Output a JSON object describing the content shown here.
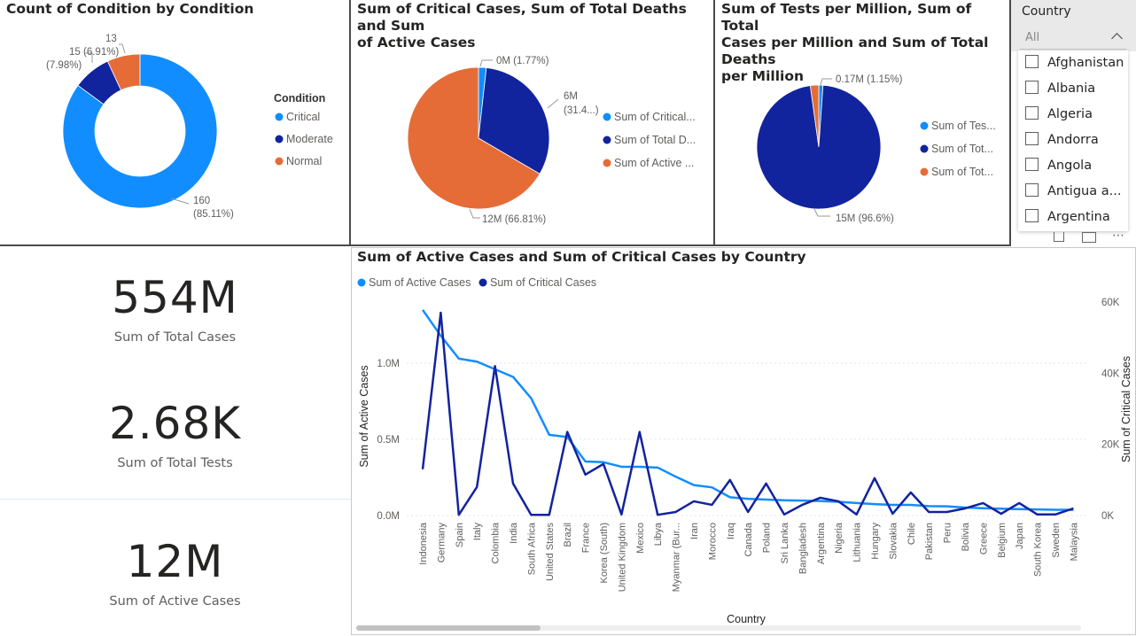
{
  "colors": {
    "light_blue": "#118DFF",
    "dark_blue": "#12239E",
    "orange": "#E66C37",
    "grid": "#e6e6e6",
    "text": "#252423",
    "muted": "#605e5c"
  },
  "donut": {
    "title": "Count of Condition by Condition",
    "legend_title": "Condition",
    "legend": [
      "Critical",
      "Moderate",
      "Normal"
    ],
    "labels": [
      {
        "l1": "160",
        "l2": "(85.11%)"
      },
      {
        "l1": "15",
        "l2": "(7.98%)"
      },
      {
        "l1": "13",
        "l2": "(6.91%)"
      }
    ]
  },
  "pie1": {
    "title_line1": "Sum of Critical Cases, Sum of Total Deaths and Sum",
    "title_line2": "of Active Cases",
    "legend": [
      "Sum of Critical...",
      "Sum of Total D...",
      "Sum of Active ..."
    ],
    "labels": [
      {
        "l1": "0M (1.77%)"
      },
      {
        "l1": "6M",
        "l2": "(31.4...)"
      },
      {
        "l1": "12M (66.81%)"
      }
    ]
  },
  "pie2": {
    "title_line1": "Sum of Tests per Million, Sum of Total",
    "title_line2": "Cases per Million and Sum of Total Deaths",
    "title_line3": "per Million",
    "legend": [
      "Sum of Tes...",
      "Sum of Tot...",
      "Sum of Tot..."
    ],
    "labels": [
      {
        "l1": "0.17M (1.15%)"
      },
      {
        "l1": "15M (96.6%)"
      }
    ]
  },
  "slicer": {
    "title": "Country",
    "selected": "All",
    "items": [
      "Afghanistan",
      "Albania",
      "Algeria",
      "Andorra",
      "Angola",
      "Antigua a...",
      "Argentina"
    ]
  },
  "kpis": [
    {
      "value": "554M",
      "label": "Sum of Total Cases"
    },
    {
      "value": "2.68K",
      "label": "Sum of Total Tests"
    },
    {
      "value": "12M",
      "label": "Sum of Active Cases"
    }
  ],
  "line": {
    "title": "Sum of Active Cases and Sum of Critical Cases by Country",
    "xlabel": "Country",
    "ylabel_left": "Sum of Active Cases",
    "ylabel_right": "Sum of Critical Cases",
    "left_ticks": [
      "0.0M",
      "0.5M",
      "1.0M"
    ],
    "right_ticks": [
      "0K",
      "20K",
      "40K",
      "60K"
    ]
  },
  "chart_data": [
    {
      "type": "pie",
      "title": "Count of Condition by Condition",
      "donut": true,
      "legend_title": "Condition",
      "categories": [
        "Critical",
        "Moderate",
        "Normal"
      ],
      "values": [
        160,
        15,
        13
      ],
      "percents": [
        85.11,
        7.98,
        6.91
      ],
      "legend_position": "right"
    },
    {
      "type": "pie",
      "title": "Sum of Critical Cases, Sum of Total Deaths and Sum of Active Cases",
      "categories": [
        "Sum of Critical...",
        "Sum of Total D...",
        "Sum of Active ..."
      ],
      "values": [
        0.32,
        5.7,
        12
      ],
      "percents": [
        1.77,
        31.42,
        66.81
      ],
      "legend_position": "right"
    },
    {
      "type": "pie",
      "title": "Sum of Tests per Million, Sum of Total Cases per Million and Sum of Total Deaths per Million",
      "categories": [
        "Sum of Tes...",
        "Sum of Tot...",
        "Sum of Tot..."
      ],
      "values": [
        0.17,
        15,
        0.34
      ],
      "percents": [
        1.15,
        96.6,
        2.25
      ],
      "legend_position": "right"
    },
    {
      "type": "line",
      "title": "Sum of Active Cases and Sum of Critical Cases by Country",
      "xlabel": "Country",
      "ylabel": "Sum of Active Cases",
      "y2label": "Sum of Critical Cases",
      "ylim": [
        0,
        1400000
      ],
      "y2lim": [
        0,
        60000
      ],
      "legend_position": "top-left",
      "categories": [
        "Indonesia",
        "Germany",
        "Spain",
        "Italy",
        "Colombia",
        "India",
        "South Africa",
        "United States",
        "Brazil",
        "France",
        "Korea (South)",
        "United Kingdom",
        "Mexico",
        "Libya",
        "Myanmar (Bur...",
        "Iran",
        "Morocco",
        "Iraq",
        "Canada",
        "Poland",
        "Sri Lanka",
        "Bangladesh",
        "Argentina",
        "Nigeria",
        "Lithuania",
        "Hungary",
        "Slovakia",
        "Chile",
        "Pakistan",
        "Peru",
        "Bolivia",
        "Greece",
        "Belgium",
        "Japan",
        "South Korea",
        "Sweden",
        "Malaysia"
      ],
      "series": [
        {
          "name": "Sum of Active Cases",
          "axis": "left",
          "values": [
            1350000,
            1180000,
            1030000,
            1010000,
            960000,
            910000,
            770000,
            530000,
            515000,
            355000,
            350000,
            320000,
            320000,
            315000,
            255000,
            200000,
            185000,
            120000,
            110000,
            105000,
            100000,
            98000,
            95000,
            90000,
            82000,
            75000,
            70000,
            70000,
            62000,
            60000,
            52000,
            48000,
            45000,
            42000,
            40000,
            38000,
            37000
          ]
        },
        {
          "name": "Sum of Critical Cases",
          "axis": "left2",
          "values": [
            13000,
            57000,
            200,
            8000,
            42000,
            9000,
            200,
            200,
            23500,
            11500,
            14500,
            300,
            23500,
            200,
            1000,
            4000,
            3000,
            10000,
            1000,
            9000,
            300,
            3000,
            5000,
            4000,
            300,
            10500,
            500,
            6500,
            1000,
            1000,
            2000,
            3500,
            500,
            3500,
            300,
            300,
            2000
          ]
        }
      ]
    }
  ]
}
